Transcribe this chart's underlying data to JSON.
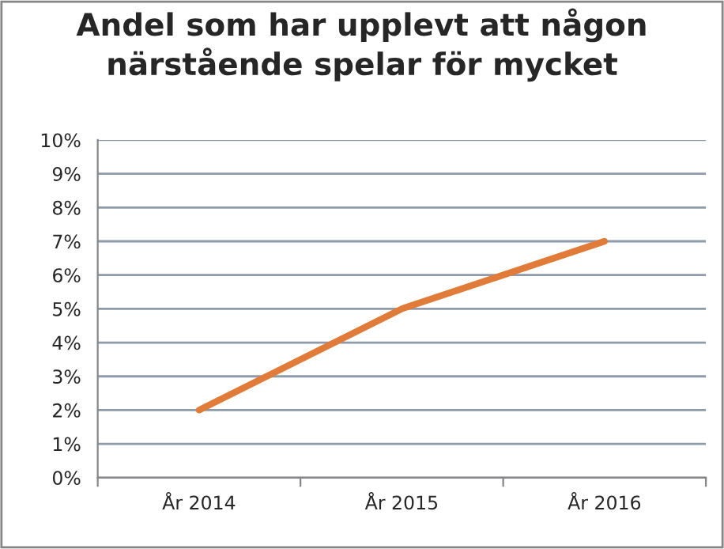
{
  "chart_data": {
    "type": "line",
    "title": "Andel som har upplevt att någon närstående spelar för mycket",
    "categories": [
      "År 2014",
      "År 2015",
      "År 2016"
    ],
    "series": [
      {
        "color": "#e07b39",
        "values": [
          2,
          5,
          7
        ]
      }
    ],
    "ylim": [
      0,
      10
    ],
    "yticks": [
      {
        "value": 0,
        "label": "0%"
      },
      {
        "value": 1,
        "label": "1%"
      },
      {
        "value": 2,
        "label": "2%"
      },
      {
        "value": 3,
        "label": "3%"
      },
      {
        "value": 4,
        "label": "4%"
      },
      {
        "value": 5,
        "label": "5%"
      },
      {
        "value": 6,
        "label": "6%"
      },
      {
        "value": 7,
        "label": "7%"
      },
      {
        "value": 8,
        "label": "8%"
      },
      {
        "value": 9,
        "label": "9%"
      },
      {
        "value": 10,
        "label": "10%"
      }
    ],
    "grid": "y",
    "marker": "none",
    "line_style": "solid"
  }
}
